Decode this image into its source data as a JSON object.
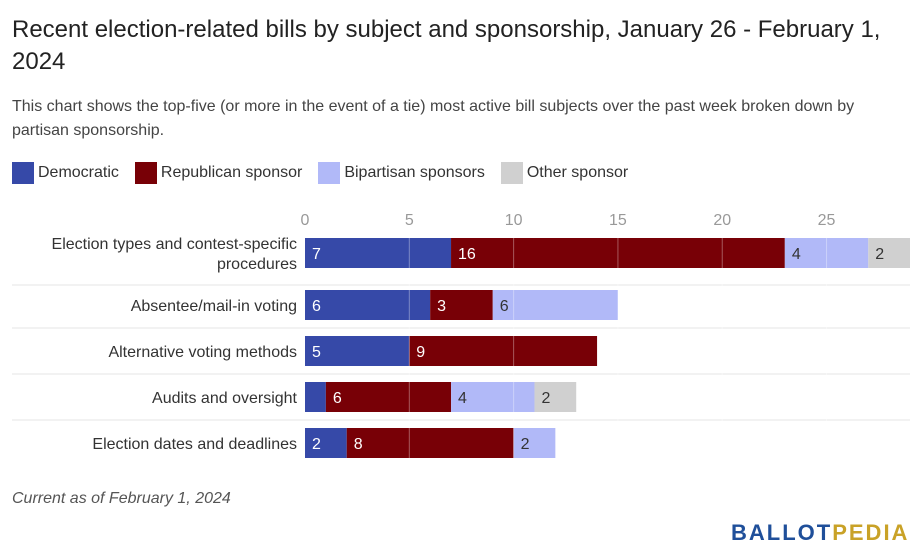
{
  "title": "Recent election-related bills by subject and sponsorship, January 26 - February 1, 2024",
  "subtitle": "This chart shows the top-five (or more in the event of a tie) most active bill subjects over the past week broken down by partisan sponsorship.",
  "footnote": "Current as of February 1, 2024",
  "logo": {
    "part1": "BALLOT",
    "part2": "PEDIA"
  },
  "chart_data": {
    "type": "bar",
    "orientation": "horizontal",
    "stacked": true,
    "categories": [
      "Election types and contest-specific procedures",
      "Absentee/mail-in voting",
      "Alternative voting methods",
      "Audits and oversight",
      "Election dates and deadlines"
    ],
    "category_lines": [
      [
        "Election types and contest-specific",
        "procedures"
      ],
      [
        "Absentee/mail-in voting"
      ],
      [
        "Alternative voting methods"
      ],
      [
        "Audits and oversight"
      ],
      [
        "Election dates and deadlines"
      ]
    ],
    "series": [
      {
        "name": "Democratic",
        "color": "#3649a8",
        "values": [
          7,
          6,
          5,
          1,
          2
        ],
        "labels": [
          "7",
          "6",
          "5",
          "",
          "2"
        ]
      },
      {
        "name": "Republican sponsor",
        "color": "#780006",
        "values": [
          16,
          3,
          9,
          6,
          8
        ],
        "labels": [
          "16",
          "3",
          "9",
          "6",
          "8"
        ]
      },
      {
        "name": "Bipartisan sponsors",
        "color": "#b1b9f8",
        "values": [
          4,
          6,
          0,
          4,
          2
        ],
        "labels": [
          "4",
          "6",
          "",
          "4",
          "2"
        ]
      },
      {
        "name": "Other sponsor",
        "color": "#d0d0d0",
        "values": [
          2,
          0,
          0,
          2,
          0
        ],
        "labels": [
          "2",
          "",
          "",
          "2",
          ""
        ]
      }
    ],
    "x_ticks": [
      "0",
      "5",
      "10",
      "15",
      "20",
      "25"
    ],
    "x_tick_values": [
      0,
      5,
      10,
      15,
      20,
      25
    ],
    "xlim": [
      0,
      29
    ],
    "legend_position": "top-left",
    "grid": true
  }
}
